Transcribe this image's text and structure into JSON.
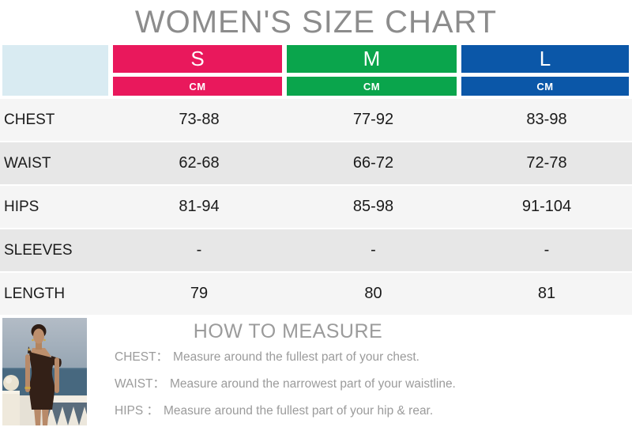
{
  "title": "WOMEN'S SIZE CHART",
  "table": {
    "unit_label": "CM",
    "sizes": [
      {
        "label": "S",
        "color": "#e9185c"
      },
      {
        "label": "M",
        "color": "#0aa54c"
      },
      {
        "label": "L",
        "color": "#0b57a8"
      }
    ],
    "rows": [
      {
        "label": "CHEST",
        "values": [
          "73-88",
          "77-92",
          "83-98"
        ]
      },
      {
        "label": "WAIST",
        "values": [
          "62-68",
          "66-72",
          "72-78"
        ]
      },
      {
        "label": "HIPS",
        "values": [
          "81-94",
          "85-98",
          "91-104"
        ]
      },
      {
        "label": "SLEEVES",
        "values": [
          "-",
          "-",
          "-"
        ]
      },
      {
        "label": "LENGTH",
        "values": [
          "79",
          "80",
          "81"
        ]
      }
    ]
  },
  "how_to_measure": {
    "heading": "HOW TO MEASURE",
    "items": [
      {
        "label": "CHEST：",
        "text": "Measure around the fullest part of your chest."
      },
      {
        "label": "WAIST：",
        "text": "Measure around the narrowest part of your waistline."
      },
      {
        "label": "HIPS ：",
        "text": "Measure around the fullest part of your hip & rear."
      }
    ],
    "photo_description": "Model wearing a dark brown one-shoulder mini dress standing at a white balustrade terrace with the sea behind"
  },
  "colors": {
    "size_s": "#e9185c",
    "size_m": "#0aa54c",
    "size_l": "#0b57a8",
    "corner_cell": "#d9ebf2",
    "row_light": "#f5f5f5",
    "row_dark": "#e7e7e7",
    "title_text": "#8c8c8c",
    "measure_text": "#9b9b9b",
    "value_text": "#1b1b1b"
  },
  "chart_data": {
    "type": "table",
    "title": "WOMEN'S SIZE CHART",
    "unit": "CM",
    "columns": [
      "S",
      "M",
      "L"
    ],
    "row_headers": [
      "CHEST",
      "WAIST",
      "HIPS",
      "SLEEVES",
      "LENGTH"
    ],
    "cells": [
      [
        "73-88",
        "77-92",
        "83-98"
      ],
      [
        "62-68",
        "66-72",
        "72-78"
      ],
      [
        "81-94",
        "85-98",
        "91-104"
      ],
      [
        "-",
        "-",
        "-"
      ],
      [
        "79",
        "80",
        "81"
      ]
    ]
  }
}
